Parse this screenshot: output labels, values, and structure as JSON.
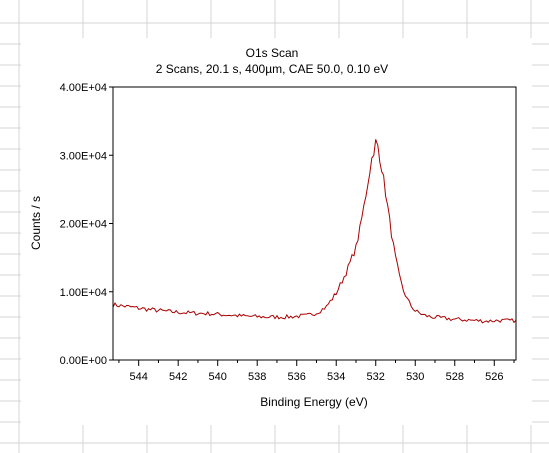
{
  "chart_data": {
    "type": "line",
    "title": "O1s Scan",
    "subtitle": "2 Scans,  20.1 s,  400µm,  CAE 50.0,  0.10 eV",
    "xlabel": "Binding Energy (eV)",
    "ylabel": "Counts / s",
    "xlim": [
      545.3,
      524.9
    ],
    "ylim": [
      0,
      40000
    ],
    "x_reversed": true,
    "grid": false,
    "xticks": [
      "544",
      "542",
      "540",
      "538",
      "536",
      "534",
      "532",
      "530",
      "528",
      "526"
    ],
    "yticks": [
      "0.00E+00",
      "1.00E+04",
      "2.00E+04",
      "3.00E+04",
      "4.00E+04"
    ],
    "series": [
      {
        "color": "#aa0000",
        "x": [
          545.3,
          544.5,
          543.5,
          542.5,
          541.5,
          540.5,
          539.5,
          538.5,
          537.5,
          536.5,
          535.5,
          535.0,
          534.5,
          534.0,
          533.5,
          533.0,
          532.8,
          532.6,
          532.4,
          532.2,
          532.0,
          531.9,
          531.8,
          531.6,
          531.4,
          531.2,
          531.0,
          530.8,
          530.6,
          530.4,
          530.2,
          530.0,
          529.6,
          529.2,
          528.8,
          528.2,
          527.6,
          527.0,
          526.4,
          525.8,
          525.2,
          524.9
        ],
        "y": [
          8100,
          7800,
          7400,
          7100,
          6900,
          6800,
          6600,
          6400,
          6300,
          6300,
          6500,
          6900,
          7800,
          9800,
          12800,
          16500,
          19200,
          22500,
          26000,
          29500,
          31900,
          31200,
          29800,
          26500,
          22500,
          18500,
          15000,
          12200,
          10200,
          8900,
          7900,
          7200,
          6600,
          6300,
          6200,
          6000,
          5900,
          5800,
          5700,
          5800,
          5750,
          5800
        ]
      }
    ]
  }
}
